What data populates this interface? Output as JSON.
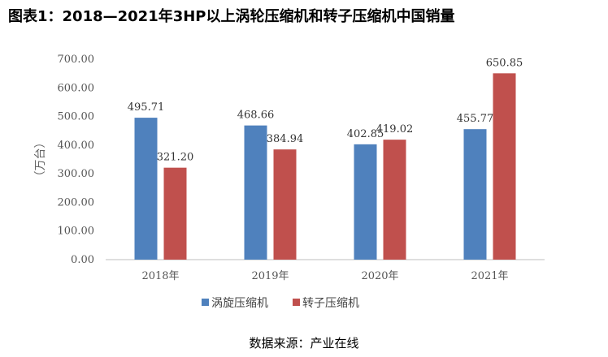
{
  "title": "图表1：2018—2021年3HP以上涡轮压缩机和转子压缩机中国销量",
  "source": "数据来源：产业在线",
  "chart_data": {
    "type": "bar",
    "categories": [
      "2018年",
      "2019年",
      "2020年",
      "2021年"
    ],
    "series": [
      {
        "name": "涡旋压缩机",
        "color": "#4f81bd",
        "values": [
          495.71,
          468.66,
          402.85,
          455.77
        ],
        "labels": [
          "495.71",
          "468.66",
          "402.85",
          "455.77"
        ]
      },
      {
        "name": "转子压缩机",
        "color": "#c0504d",
        "values": [
          321.2,
          384.94,
          419.02,
          650.85
        ],
        "labels": [
          "321.20",
          "384.94",
          "419.02",
          "650.85"
        ]
      }
    ],
    "ylabel": "（万台）",
    "ylim": [
      0,
      700
    ],
    "yticks": [
      "0.00",
      "100.00",
      "200.00",
      "300.00",
      "400.00",
      "500.00",
      "600.00",
      "700.00"
    ],
    "grid": false,
    "legend": "bottom"
  }
}
